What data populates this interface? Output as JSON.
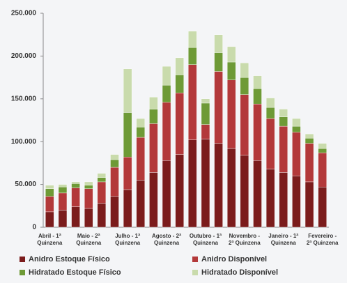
{
  "chart_data": {
    "type": "stacked_bar",
    "categories": [
      "Abril - 1ª\nQuinzena",
      null,
      null,
      "Maio - 2ª\nQuinzena",
      null,
      null,
      "Julho - 1ª\nQuinzena",
      null,
      null,
      "Agosto - 2ª\nQuinzena",
      null,
      null,
      "Outubro - 1ª\nQuinzena",
      null,
      null,
      "Novembro -\n2ª Quinzena",
      null,
      null,
      "Janeiro - 1ª\nQuinzena",
      null,
      null,
      "Fevereiro -\n2ª Quinzena"
    ],
    "series": [
      {
        "name": "Anidro Estoque Físico",
        "color": "#7b1c1c",
        "values": [
          18000,
          20000,
          24000,
          22000,
          28000,
          36000,
          44000,
          55000,
          64000,
          78000,
          85000,
          102000,
          103000,
          98000,
          92000,
          84000,
          78000,
          68000,
          64000,
          60000,
          53000,
          47000
        ]
      },
      {
        "name": "Anidro Disponível",
        "color": "#b3393a",
        "values": [
          18000,
          20000,
          22000,
          23000,
          25000,
          34000,
          38000,
          50000,
          57000,
          68000,
          72000,
          88000,
          17000,
          84000,
          80000,
          71000,
          66000,
          59000,
          54000,
          51000,
          45000,
          40000
        ]
      },
      {
        "name": "Hidratado Estoque Físico",
        "color": "#6e9a36",
        "values": [
          9000,
          7000,
          5000,
          4000,
          5000,
          9000,
          52000,
          12000,
          17000,
          20000,
          21000,
          20000,
          25000,
          22000,
          21000,
          20000,
          18000,
          13000,
          11000,
          7000,
          6000,
          5000
        ]
      },
      {
        "name": "Hidratado Disponível",
        "color": "#c9dbac",
        "values": [
          4000,
          3000,
          2000,
          4000,
          5000,
          6000,
          51000,
          10000,
          14000,
          22000,
          20000,
          19000,
          5000,
          21000,
          18000,
          17000,
          15000,
          11000,
          9000,
          9000,
          5000,
          6000
        ]
      }
    ],
    "ylim": [
      0,
      250000
    ],
    "yticks": [
      0,
      {
        "value": 50000,
        "label": "50.000"
      },
      {
        "value": 100000,
        "label": "100.000"
      },
      {
        "value": 150000,
        "label": "150.000"
      },
      {
        "value": 200000,
        "label": "200.000"
      },
      {
        "value": 250000,
        "label": "250.000"
      }
    ]
  }
}
